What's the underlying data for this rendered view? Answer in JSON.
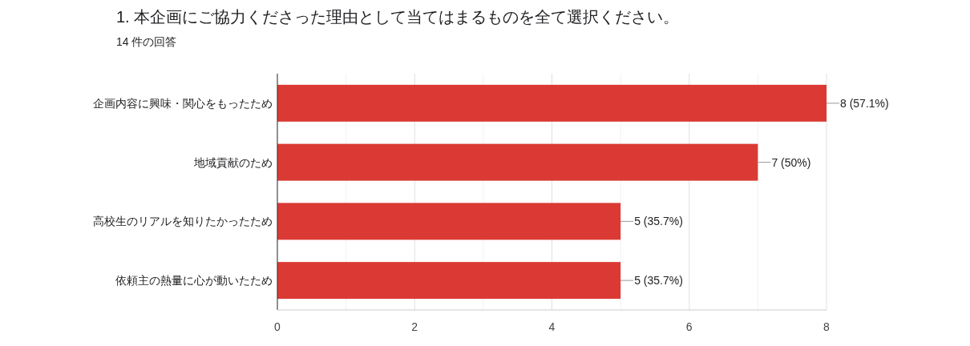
{
  "chart_data": {
    "type": "bar",
    "orientation": "horizontal",
    "title": "1. 本企画にご協力くださった理由として当てはまるものを全て選択ください。",
    "subtitle": "14 件の回答",
    "categories": [
      "企画内容に興味・関心をもったため",
      "地域貢献のため",
      "高校生のリアルを知りたかったため",
      "依頼主の熱量に心が動いたため"
    ],
    "values": [
      8,
      7,
      5,
      5
    ],
    "value_labels": [
      "8 (57.1%)",
      "7 (50%)",
      "5 (35.7%)",
      "5 (35.7%)"
    ],
    "color": "#db3a34",
    "xlim": [
      0,
      8
    ],
    "xticks": [
      0,
      {
        "value": 1,
        "label": null
      },
      2,
      {
        "value": 3,
        "label": null
      },
      4,
      {
        "value": 5,
        "label": null
      },
      6,
      {
        "value": 7,
        "label": null
      },
      8
    ],
    "grid": "x"
  }
}
